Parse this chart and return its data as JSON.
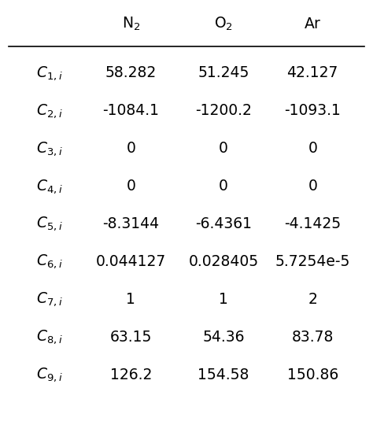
{
  "col_headers": [
    "N$_2$",
    "O$_2$",
    "Ar"
  ],
  "row_labels_latex": [
    "$C_{1,i}$",
    "$C_{2,i}$",
    "$C_{3,i}$",
    "$C_{4,i}$",
    "$C_{5,i}$",
    "$C_{6,i}$",
    "$C_{7,i}$",
    "$C_{8,i}$",
    "$C_{9,i}$"
  ],
  "data": [
    [
      "58.282",
      "51.245",
      "42.127"
    ],
    [
      "-1084.1",
      "-1200.2",
      "-1093.1"
    ],
    [
      "0",
      "0",
      "0"
    ],
    [
      "0",
      "0",
      "0"
    ],
    [
      "-8.3144",
      "-6.4361",
      "-4.1425"
    ],
    [
      "0.044127",
      "0.028405",
      "5.7254e-5"
    ],
    [
      "1",
      "1",
      "2"
    ],
    [
      "63.15",
      "54.36",
      "83.78"
    ],
    [
      "126.2",
      "154.58",
      "150.86"
    ]
  ],
  "bg_color": "#ffffff",
  "text_color": "#000000",
  "line_color": "#000000",
  "figsize": [
    4.74,
    5.35
  ],
  "dpi": 100
}
